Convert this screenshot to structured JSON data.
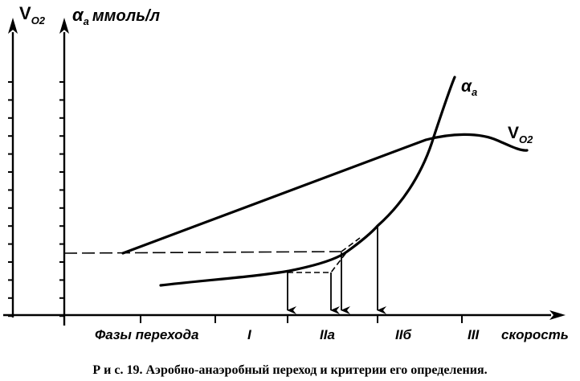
{
  "title": "",
  "y_axis_outer": {
    "label_main": "V",
    "label_sub": "O2"
  },
  "y_axis_inner": {
    "label_symbol": "α",
    "label_sub": "a",
    "label_unit": "ммоль/л"
  },
  "x_axis": {
    "label": "скорость"
  },
  "phases": {
    "label": "Фазы перехода",
    "items": [
      "I",
      "IIa",
      "IIб",
      "III"
    ]
  },
  "curves": {
    "lactate": {
      "symbol": "α",
      "sub": "a"
    },
    "vo2": {
      "main": "V",
      "sub": "O2"
    }
  },
  "caption": "Р и с.  19.  Аэробно-анаэробный переход и критерии его определения."
}
